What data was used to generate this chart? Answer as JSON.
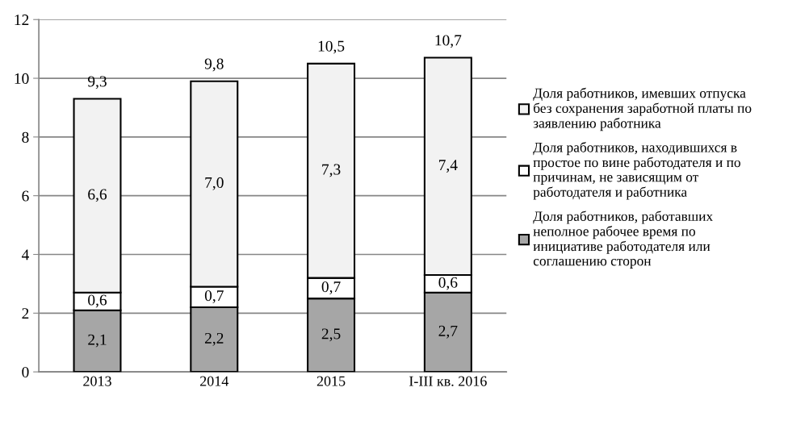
{
  "chart_data": {
    "type": "bar",
    "stacked": true,
    "categories": [
      "2013",
      "2014",
      "2015",
      "I-III кв. 2016"
    ],
    "series": [
      {
        "name": "Доля работников, работавших неполное рабочее время по инициативе работодателя или соглашению сторон",
        "color": "#a6a6a6",
        "values": [
          2.1,
          2.2,
          2.5,
          2.7
        ],
        "value_labels": [
          "2,1",
          "2,2",
          "2,5",
          "2,7"
        ]
      },
      {
        "name": "Доля работников, находившихся в простое по вине работодателя и по причинам, не зависящим от работодателя и работника",
        "color": "#ffffff",
        "values": [
          0.6,
          0.7,
          0.7,
          0.6
        ],
        "value_labels": [
          "0,6",
          "0,7",
          "0,7",
          "0,6"
        ]
      },
      {
        "name": "Доля работников, имевших отпуска без сохранения заработной платы по заявлению работника",
        "color": "#f2f2f2",
        "values": [
          6.6,
          7.0,
          7.3,
          7.4
        ],
        "value_labels": [
          "6,6",
          "7,0",
          "7,3",
          "7,4"
        ]
      }
    ],
    "totals": [
      "9,3",
      "9,8",
      "10,5",
      "10,7"
    ],
    "ylim": [
      0,
      12
    ],
    "yticks": [
      0,
      2,
      4,
      6,
      8,
      10,
      12
    ],
    "grid": "y",
    "legend": "right"
  }
}
